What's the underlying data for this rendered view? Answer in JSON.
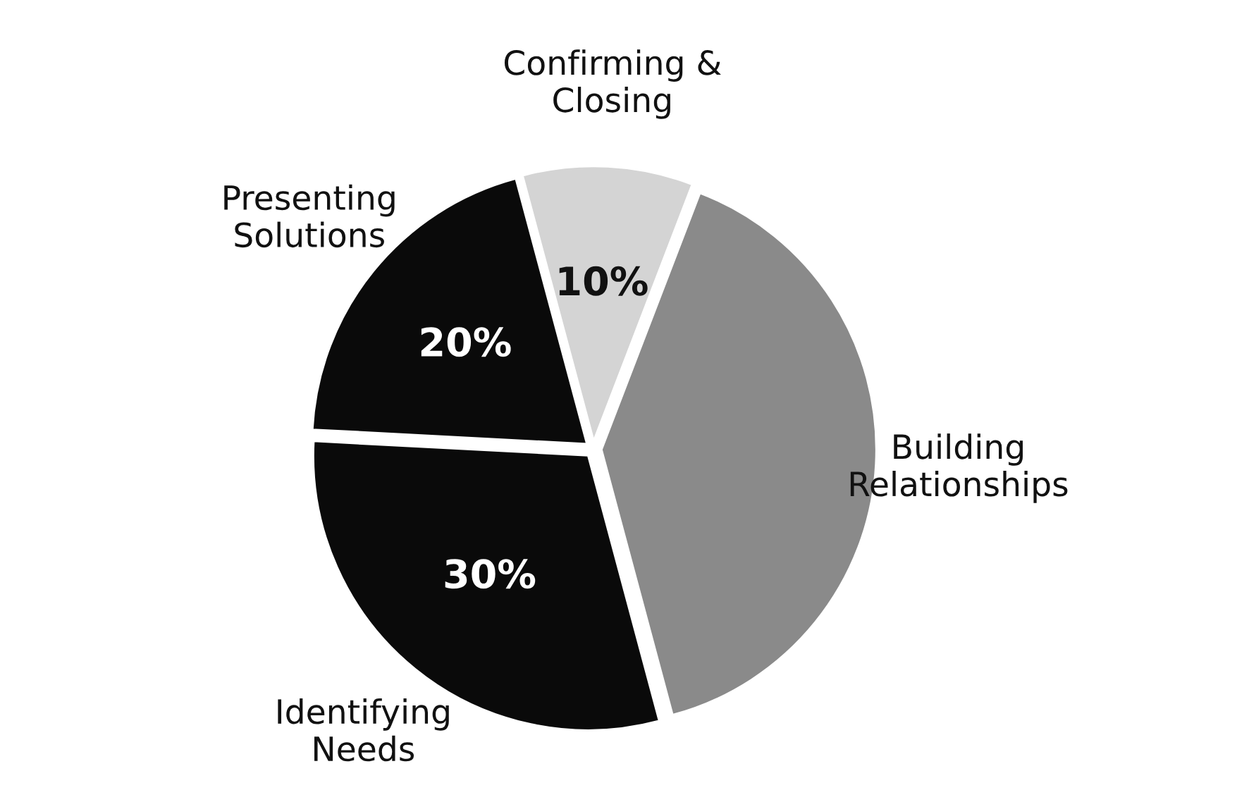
{
  "chart_data": {
    "type": "pie",
    "categories": [
      "Confirming & Closing",
      "Building Relationships",
      "Identifying Needs",
      "Presenting Solutions"
    ],
    "values": [
      10,
      40,
      30,
      20
    ],
    "colors": [
      "#d4d4d4",
      "#8a8a8a",
      "#0a0a0a",
      "#0a0a0a"
    ],
    "value_labels": [
      "10%",
      null,
      "30%",
      "20%"
    ],
    "legend": false
  }
}
